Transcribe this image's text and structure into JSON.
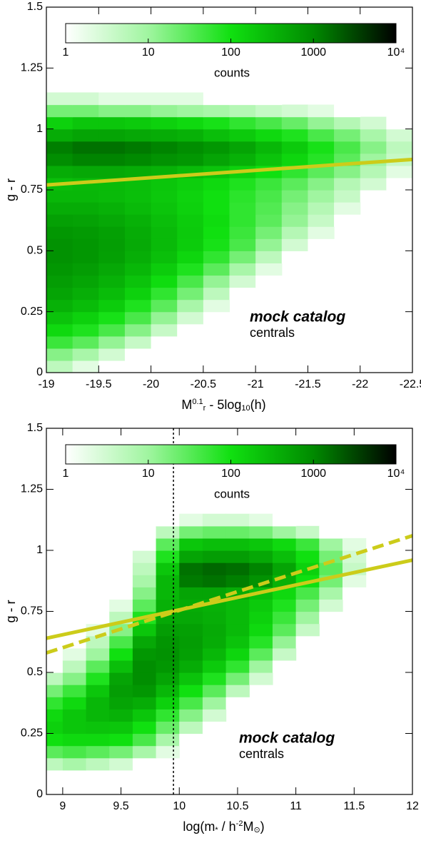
{
  "chart_data": [
    {
      "type": "heatmap",
      "x_label_parts": [
        "M",
        "0.1",
        "r",
        " - 5log",
        "10",
        "(h)"
      ],
      "y_label": "g - r",
      "xlim": [
        -19,
        -22.5
      ],
      "ylim": [
        0,
        1.5
      ],
      "xticks": [
        -19,
        -19.5,
        -20,
        -20.5,
        -21,
        -21.5,
        -22,
        -22.5
      ],
      "yticks": [
        0,
        0.25,
        0.5,
        0.75,
        1,
        1.25,
        1.5
      ],
      "colorbar": {
        "label": "counts",
        "lim": [
          1,
          10000
        ],
        "ticks": [
          1,
          10,
          100,
          1000,
          {
            "value": 10000,
            "label": "10⁴"
          }
        ]
      },
      "colormap": [
        "#ffffff",
        "#a0f5a0",
        "#10e010",
        "#008a00",
        "#000000"
      ],
      "x_bins": [
        -19,
        -19.25,
        -19.5,
        -19.75,
        -20,
        -20.25,
        -20.5,
        -20.75,
        -21,
        -21.25,
        -21.5,
        -21.75,
        -22,
        -22.25,
        -22.5
      ],
      "y_bins": [
        0,
        0.05,
        0.1,
        0.15,
        0.2,
        0.25,
        0.3,
        0.35,
        0.4,
        0.45,
        0.5,
        0.55,
        0.6,
        0.65,
        0.7,
        0.75,
        0.8,
        0.85,
        0.9,
        0.95,
        1,
        1.05,
        1.1,
        1.15
      ],
      "counts": [
        [
          5,
          2,
          1,
          null,
          null,
          null,
          null,
          null,
          null,
          null,
          null,
          null,
          null,
          null
        ],
        [
          15,
          8,
          3,
          1,
          null,
          null,
          null,
          null,
          null,
          null,
          null,
          null,
          null,
          null
        ],
        [
          50,
          30,
          12,
          4,
          1,
          null,
          null,
          null,
          null,
          null,
          null,
          null,
          null,
          null
        ],
        [
          120,
          80,
          40,
          15,
          4,
          1,
          null,
          null,
          null,
          null,
          null,
          null,
          null,
          null
        ],
        [
          220,
          150,
          90,
          40,
          12,
          3,
          1,
          null,
          null,
          null,
          null,
          null,
          null,
          null
        ],
        [
          350,
          260,
          170,
          80,
          30,
          8,
          2,
          null,
          null,
          null,
          null,
          null,
          null,
          null
        ],
        [
          500,
          380,
          260,
          150,
          60,
          20,
          5,
          1,
          null,
          null,
          null,
          null,
          null,
          null
        ],
        [
          600,
          480,
          350,
          220,
          110,
          40,
          12,
          3,
          1,
          null,
          null,
          null,
          null,
          null
        ],
        [
          700,
          600,
          450,
          300,
          170,
          80,
          30,
          8,
          2,
          null,
          null,
          null,
          null,
          null
        ],
        [
          800,
          700,
          550,
          380,
          240,
          130,
          60,
          20,
          5,
          1,
          null,
          null,
          null,
          null
        ],
        [
          800,
          700,
          580,
          420,
          280,
          170,
          90,
          40,
          12,
          3,
          1,
          null,
          null,
          null
        ],
        [
          700,
          650,
          550,
          400,
          280,
          180,
          100,
          50,
          20,
          6,
          2,
          null,
          null,
          null
        ],
        [
          550,
          520,
          450,
          350,
          250,
          170,
          110,
          60,
          30,
          12,
          4,
          1,
          null,
          null
        ],
        [
          400,
          400,
          350,
          280,
          210,
          150,
          100,
          60,
          35,
          15,
          6,
          2,
          null,
          null
        ],
        [
          300,
          300,
          280,
          240,
          190,
          140,
          100,
          65,
          40,
          20,
          10,
          4,
          1,
          null
        ],
        [
          250,
          280,
          270,
          240,
          200,
          160,
          120,
          80,
          50,
          30,
          15,
          6,
          3,
          1
        ],
        [
          400,
          450,
          450,
          400,
          350,
          280,
          220,
          150,
          100,
          60,
          30,
          15,
          6,
          2
        ],
        [
          900,
          1100,
          1100,
          1000,
          800,
          700,
          500,
          350,
          220,
          130,
          70,
          30,
          10,
          4
        ],
        [
          1200,
          1500,
          1500,
          1300,
          1100,
          900,
          700,
          500,
          300,
          180,
          90,
          40,
          15,
          5
        ],
        [
          400,
          500,
          500,
          450,
          400,
          350,
          250,
          180,
          120,
          80,
          40,
          20,
          8,
          3
        ],
        [
          150,
          200,
          200,
          180,
          150,
          120,
          90,
          60,
          40,
          25,
          12,
          6,
          3,
          1
        ],
        [
          20,
          20,
          15,
          15,
          12,
          10,
          8,
          6,
          4,
          3,
          2,
          1,
          null,
          null
        ],
        [
          3,
          3,
          2,
          2,
          2,
          2,
          1,
          1,
          1,
          null,
          null,
          null,
          null,
          null
        ]
      ],
      "lines": [
        {
          "x": [
            -19,
            -22.5
          ],
          "y": [
            0.77,
            0.875
          ],
          "color": "#cccc1a",
          "style": "solid"
        }
      ],
      "annotations": [
        "mock catalog",
        "centrals"
      ],
      "annotation_colors": [
        "#e00000",
        "#000000"
      ]
    },
    {
      "type": "heatmap",
      "x_label_parts": [
        "log(m",
        "*",
        " / h",
        "-2",
        "M",
        "⊙",
        ")"
      ],
      "y_label": "g - r",
      "xlim": [
        8.86,
        12
      ],
      "ylim": [
        0,
        1.5
      ],
      "xticks": [
        9,
        9.5,
        10,
        10.5,
        11,
        11.5,
        12
      ],
      "yticks": [
        0,
        0.25,
        0.5,
        0.75,
        1,
        1.25,
        1.5
      ],
      "colorbar": {
        "label": "counts",
        "lim": [
          1,
          10000
        ],
        "ticks": [
          1,
          10,
          100,
          1000,
          {
            "value": 10000,
            "label": "10⁴"
          }
        ]
      },
      "colormap": [
        "#ffffff",
        "#a0f5a0",
        "#10e010",
        "#008a00",
        "#000000"
      ],
      "x_bins": [
        8.8,
        9,
        9.2,
        9.4,
        9.6,
        9.8,
        10,
        10.2,
        10.4,
        10.6,
        10.8,
        11,
        11.2,
        11.4,
        11.6,
        11.8,
        12
      ],
      "y_bins": [
        0.1,
        0.15,
        0.2,
        0.25,
        0.3,
        0.35,
        0.4,
        0.45,
        0.5,
        0.55,
        0.6,
        0.65,
        0.7,
        0.75,
        0.8,
        0.85,
        0.9,
        0.95,
        1,
        1.05,
        1.1,
        1.15
      ],
      "counts": [
        [
          5,
          8,
          5,
          3,
          1,
          null,
          null,
          null,
          null,
          null,
          null,
          null,
          null,
          null,
          null,
          null
        ],
        [
          30,
          40,
          30,
          20,
          8,
          2,
          null,
          null,
          null,
          null,
          null,
          null,
          null,
          null,
          null,
          null
        ],
        [
          100,
          120,
          120,
          100,
          40,
          8,
          1,
          null,
          null,
          null,
          null,
          null,
          null,
          null,
          null,
          null
        ],
        [
          150,
          200,
          220,
          200,
          100,
          25,
          5,
          1,
          null,
          null,
          null,
          null,
          null,
          null,
          null,
          null
        ],
        [
          120,
          200,
          300,
          350,
          200,
          60,
          15,
          3,
          null,
          null,
          null,
          null,
          null,
          null,
          null,
          null
        ],
        [
          60,
          120,
          300,
          500,
          400,
          150,
          40,
          10,
          1,
          null,
          null,
          null,
          null,
          null,
          null,
          null
        ],
        [
          20,
          50,
          200,
          600,
          700,
          300,
          100,
          30,
          5,
          null,
          null,
          null,
          null,
          null,
          null,
          null
        ],
        [
          5,
          15,
          80,
          500,
          900,
          500,
          220,
          80,
          20,
          3,
          null,
          null,
          null,
          null,
          null,
          null
        ],
        [
          1,
          5,
          30,
          250,
          900,
          700,
          400,
          180,
          60,
          10,
          1,
          null,
          null,
          null,
          null,
          null
        ],
        [
          null,
          2,
          10,
          100,
          700,
          800,
          550,
          300,
          130,
          30,
          4,
          null,
          null,
          null,
          null,
          null
        ],
        [
          null,
          1,
          5,
          40,
          450,
          750,
          600,
          400,
          220,
          70,
          12,
          1,
          null,
          null,
          null,
          null
        ],
        [
          null,
          null,
          2,
          15,
          200,
          600,
          550,
          420,
          280,
          120,
          30,
          4,
          null,
          null,
          null,
          null
        ],
        [
          null,
          null,
          1,
          5,
          80,
          450,
          450,
          380,
          280,
          150,
          50,
          10,
          1,
          null,
          null,
          null
        ],
        [
          null,
          null,
          null,
          2,
          30,
          350,
          400,
          350,
          280,
          180,
          80,
          20,
          3,
          null,
          null,
          null
        ],
        [
          null,
          null,
          null,
          1,
          15,
          300,
          500,
          500,
          400,
          250,
          120,
          40,
          8,
          1,
          null,
          null
        ],
        [
          null,
          null,
          null,
          null,
          8,
          300,
          1300,
          1500,
          1200,
          800,
          350,
          100,
          20,
          2,
          null,
          null
        ],
        [
          null,
          null,
          null,
          null,
          5,
          200,
          1500,
          1800,
          1600,
          1100,
          500,
          150,
          30,
          4,
          null,
          null
        ],
        [
          null,
          null,
          null,
          null,
          3,
          80,
          500,
          600,
          600,
          450,
          250,
          100,
          20,
          3,
          null,
          null
        ],
        [
          null,
          null,
          null,
          null,
          1,
          30,
          200,
          250,
          250,
          200,
          120,
          50,
          10,
          2,
          null,
          null
        ],
        [
          null,
          null,
          null,
          null,
          null,
          5,
          20,
          25,
          25,
          20,
          10,
          4,
          1,
          null,
          null,
          null
        ],
        [
          null,
          null,
          null,
          null,
          null,
          1,
          2,
          3,
          3,
          2,
          1,
          null,
          null,
          null,
          null,
          null
        ]
      ],
      "lines": [
        {
          "x": [
            8.86,
            12
          ],
          "y": [
            0.64,
            0.96
          ],
          "color": "#cccc1a",
          "style": "solid"
        },
        {
          "x": [
            8.86,
            12
          ],
          "y": [
            0.58,
            1.06
          ],
          "color": "#cccc1a",
          "style": "dashed"
        }
      ],
      "vline": 9.95,
      "annotations": [
        "mock catalog",
        "centrals"
      ],
      "annotation_colors": [
        "#e00000",
        "#000000"
      ]
    }
  ]
}
